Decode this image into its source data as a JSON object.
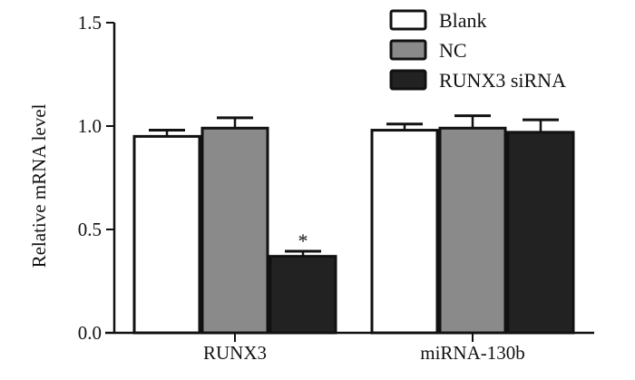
{
  "chart_data": {
    "type": "bar",
    "title": "",
    "xlabel": "",
    "ylabel": "Relative mRNA level",
    "ylim": [
      0,
      1.5
    ],
    "yticks": [
      "0.0",
      "0.5",
      "1.0",
      "1.5"
    ],
    "categories": [
      "RUNX3",
      "miRNA-130b"
    ],
    "series": [
      {
        "name": "Blank",
        "values": [
          0.95,
          0.98
        ],
        "errors": [
          0.03,
          0.03
        ],
        "color": "#ffffff"
      },
      {
        "name": "NC",
        "values": [
          0.99,
          0.99
        ],
        "errors": [
          0.05,
          0.06
        ],
        "color": "#8a8a8a"
      },
      {
        "name": "RUNX3 siRNA",
        "values": [
          0.37,
          0.97
        ],
        "errors": [
          0.025,
          0.06
        ],
        "color": "#222222"
      }
    ],
    "annotations": [
      {
        "text": "*",
        "category": "RUNX3",
        "series": "RUNX3 siRNA"
      }
    ],
    "legend_position": "top-right",
    "grid": false
  }
}
